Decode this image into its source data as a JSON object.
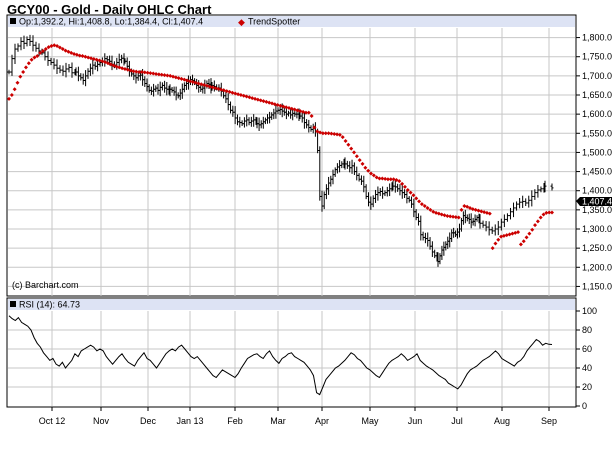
{
  "title": "GCY00 - Gold - Daily OHLC Chart",
  "legend": {
    "ohlc": "Op:1,392.2, Hi:1,408.8, Lo:1,384.4, Cl:1,407.4",
    "trendspotter": "TrendSpotter"
  },
  "rsi_legend": "RSI (14): 64.73",
  "watermark": "(c) Barchart.com",
  "last_price_label": "1,407.4",
  "colors": {
    "panel_bg": "#ffffff",
    "header_bg": "#dde3f4",
    "grid": "#c7c7c7",
    "bars": "#000000",
    "trendspotter": "#cc0000",
    "last_price_box": "#000000"
  },
  "chart_data": [
    {
      "type": "ohlc",
      "title": "GCY00 - Gold - Daily OHLC Chart",
      "x_tick_labels": [
        "Oct 12",
        "Nov",
        "Dec",
        "Jan 13",
        "Feb",
        "Mar",
        "Apr",
        "May",
        "Jun",
        "Jul",
        "Aug",
        "Sep"
      ],
      "y_tick_labels": [
        "1,800.0",
        "1,750.0",
        "1,700.0",
        "1,650.0",
        "1,600.0",
        "1,550.0",
        "1,500.0",
        "1,450.0",
        "1,400.0",
        "1,350.0",
        "1,300.0",
        "1,250.0",
        "1,200.0",
        "1,150.0"
      ],
      "ylim": [
        1125,
        1825
      ],
      "grid": true,
      "close_series": [
        {
          "month": "Oct 12",
          "values": [
            1710,
            1745,
            1770,
            1778,
            1790,
            1785,
            1795,
            1790,
            1780,
            1772,
            1765,
            1760,
            1750,
            1740,
            1735,
            1728,
            1720,
            1715,
            1712,
            1718,
            1722,
            1708,
            1712
          ]
        },
        {
          "month": "Nov",
          "values": [
            1710,
            1700,
            1695,
            1688,
            1700,
            1712,
            1720,
            1728,
            1725,
            1730,
            1735,
            1738,
            1745,
            1742,
            1738,
            1730,
            1728,
            1735,
            1742,
            1746,
            1740
          ]
        },
        {
          "month": "Dec",
          "values": [
            1738,
            1725,
            1712,
            1705,
            1700,
            1695,
            1700,
            1702,
            1690,
            1680,
            1672,
            1662,
            1660,
            1665,
            1668,
            1662,
            1670,
            1675,
            1668,
            1665,
            1660
          ]
        },
        {
          "month": "Jan 13",
          "values": [
            1665,
            1662,
            1658,
            1650,
            1648,
            1655,
            1665,
            1675,
            1680,
            1685,
            1690,
            1688,
            1682,
            1675,
            1670,
            1665,
            1668,
            1675,
            1680,
            1678,
            1670
          ]
        },
        {
          "month": "Feb",
          "values": [
            1675,
            1672,
            1668,
            1668,
            1660,
            1648,
            1640,
            1625,
            1610,
            1605,
            1590,
            1580,
            1578,
            1575,
            1582,
            1585,
            1578,
            1582,
            1585,
            1580
          ]
        },
        {
          "month": "Mar",
          "values": [
            1575,
            1572,
            1575,
            1580,
            1585,
            1590,
            1592,
            1598,
            1603,
            1608,
            1610,
            1612,
            1608,
            1605,
            1600,
            1603,
            1598,
            1602,
            1600,
            1600,
            1597
          ]
        },
        {
          "month": "Apr",
          "values": [
            1595,
            1590,
            1578,
            1572,
            1565,
            1560,
            1565,
            1555,
            1505,
            1385,
            1360,
            1390,
            1405,
            1420,
            1430,
            1442,
            1455,
            1462,
            1466,
            1470,
            1472
          ]
        },
        {
          "month": "May",
          "values": [
            1470,
            1465,
            1460,
            1465,
            1450,
            1440,
            1430,
            1425,
            1410,
            1385,
            1370,
            1365,
            1380,
            1390,
            1395,
            1398,
            1392,
            1395,
            1400,
            1405,
            1415
          ]
        },
        {
          "month": "Jun",
          "values": [
            1412,
            1410,
            1405,
            1400,
            1395,
            1390,
            1380,
            1375,
            1365,
            1345,
            1330,
            1320,
            1285,
            1278,
            1275,
            1270,
            1255,
            1240,
            1230,
            1225
          ]
        },
        {
          "month": "Jul",
          "values": [
            1215,
            1230,
            1245,
            1252,
            1260,
            1268,
            1275,
            1290,
            1290,
            1285,
            1292,
            1300,
            1322,
            1335,
            1330,
            1328,
            1325,
            1318,
            1320,
            1325,
            1330,
            1325
          ]
        },
        {
          "month": "Aug",
          "values": [
            1315,
            1310,
            1305,
            1298,
            1295,
            1300,
            1305,
            1318,
            1325,
            1335,
            1345,
            1355,
            1365,
            1370,
            1372,
            1368,
            1375,
            1385,
            1395,
            1402,
            1405,
            1410
          ]
        },
        {
          "month": "Sep",
          "values": [
            1412,
            1407.4
          ]
        }
      ],
      "trendspotter_markers": {
        "description": "Red TrendSpotter dots",
        "values": [
          1640,
          1650,
          1665,
          1682,
          1698,
          1710,
          1722,
          1733,
          1742,
          1748,
          1752,
          1760,
          1765,
          1770,
          1775,
          1778,
          1780,
          1778,
          1774,
          1770,
          1766,
          1763,
          1760,
          1757,
          1755,
          1753,
          1752,
          1750,
          1748,
          1746,
          1744,
          1742,
          1740,
          1738,
          1736,
          1733,
          1730,
          1727,
          1724,
          1722,
          1720,
          1718,
          1716,
          1714,
          1712,
          1711,
          1710,
          1710,
          1709,
          1708,
          1707,
          1706,
          1705,
          1704,
          1703,
          1702,
          1701,
          1700,
          1698,
          1696,
          1694,
          1692,
          1690,
          1688,
          1686,
          1684,
          1682,
          1680,
          1678,
          1676,
          1674,
          1672,
          1670,
          1668,
          1666,
          1664,
          1662,
          1660,
          1658,
          1656,
          1654,
          1652,
          1650,
          1648,
          1646,
          1644,
          1642,
          1640,
          1638,
          1636,
          1634,
          1632,
          1630,
          1628,
          1626,
          1624,
          1622,
          1620,
          1618,
          1616,
          1614,
          1612,
          1610,
          1608,
          1606,
          1604,
          1604,
          1595,
          1565,
          1555,
          1552,
          1550,
          1550,
          1550,
          1549,
          1548,
          1547,
          1546,
          1540,
          1530,
          1520,
          1510,
          1500,
          1490,
          1480,
          1470,
          1460,
          1452,
          1445,
          1440,
          1435,
          1432,
          1432,
          1431,
          1430,
          1430,
          1430,
          1428,
          1425,
          1418,
          1410,
          1402,
          1395,
          1388,
          1380,
          1372,
          1365,
          1360,
          1355,
          1350,
          1345,
          1342,
          1340,
          1338,
          1336,
          1334,
          1333,
          1332,
          1331,
          1330,
          1350,
          1360,
          1358,
          1355,
          1352,
          1350,
          1348,
          1346,
          1344,
          1342,
          1340,
          1250,
          1262,
          1272,
          1280,
          1282,
          1284,
          1286,
          1288,
          1290,
          1292,
          1260,
          1268,
          1278,
          1288,
          1298,
          1310,
          1320,
          1330,
          1338,
          1342,
          1343,
          1343
        ]
      }
    },
    {
      "type": "line",
      "title": "RSI (14): 64.73",
      "ylim": [
        0,
        100
      ],
      "y_tick_labels": [
        "100",
        "80",
        "60",
        "40",
        "20",
        "0"
      ],
      "grid": true,
      "values": [
        95,
        92,
        90,
        93,
        88,
        86,
        84,
        80,
        72,
        66,
        62,
        56,
        52,
        48,
        50,
        44,
        42,
        46,
        40,
        44,
        48,
        55,
        52,
        58,
        60,
        62,
        64,
        62,
        58,
        60,
        58,
        52,
        48,
        44,
        48,
        52,
        55,
        50,
        46,
        44,
        42,
        48,
        52,
        56,
        50,
        48,
        44,
        40,
        45,
        50,
        55,
        58,
        60,
        58,
        62,
        64,
        60,
        56,
        52,
        50,
        52,
        48,
        44,
        40,
        36,
        32,
        30,
        34,
        38,
        36,
        34,
        32,
        30,
        34,
        40,
        45,
        50,
        52,
        54,
        55,
        52,
        50,
        55,
        58,
        52,
        48,
        45,
        50,
        52,
        55,
        56,
        52,
        50,
        48,
        46,
        42,
        38,
        32,
        14,
        12,
        20,
        28,
        32,
        36,
        40,
        42,
        45,
        48,
        52,
        56,
        54,
        50,
        48,
        44,
        40,
        38,
        35,
        32,
        30,
        35,
        40,
        45,
        48,
        50,
        52,
        55,
        52,
        48,
        50,
        52,
        55,
        48,
        45,
        42,
        40,
        38,
        35,
        32,
        30,
        28,
        24,
        22,
        20,
        18,
        22,
        28,
        34,
        38,
        40,
        42,
        45,
        48,
        50,
        52,
        55,
        58,
        55,
        50,
        48,
        46,
        44,
        42,
        46,
        48,
        52,
        58,
        62,
        66,
        70,
        68,
        64,
        66,
        65,
        64.73
      ]
    }
  ]
}
